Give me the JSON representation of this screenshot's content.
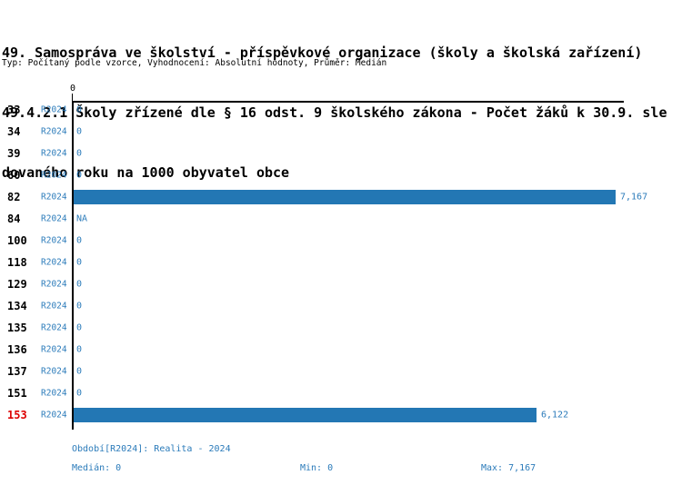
{
  "page": {
    "title_lines": [
      "49. Samospráva ve školství - příspěvkové organizace (školy a školská zařízení)",
      "49.4.2.1 Školy zřízené dle § 16 odst. 9 školského zákona - Počet žáků k 30.9. sle",
      "dovaného roku na 1000 obyvatel obce"
    ],
    "subtitle": "Typ: Počítaný podle vzorce, Vyhodnocení: Absolutní hodnoty, Průměr: Medián"
  },
  "colors": {
    "bar_blue": "#2377B4",
    "text_blue": "#2B7BBA",
    "highlight_red": "#DD0000",
    "axis_black": "#000000"
  },
  "chart_data": {
    "type": "bar",
    "orientation": "horizontal",
    "title": "49. Samospráva ve školství - příspěvkové organizace (školy a školská zařízení) 49.4.2.1 Školy zřízené dle § 16 odst. 9 školského zákona - Počet žáků k 30.9. sledovaného roku na 1000 obyvatel obce",
    "subtitle": "Typ: Počítaný podle vzorce, Vyhodnocení: Absolutní hodnoty, Průměr: Medián",
    "series_name": "R2024",
    "axis_origin_tick": "0",
    "xlim": [
      0,
      7275
    ],
    "grid": false,
    "legend_position": "none",
    "categories": [
      "33",
      "34",
      "39",
      "60",
      "82",
      "84",
      "100",
      "118",
      "129",
      "134",
      "135",
      "136",
      "137",
      "151",
      "153"
    ],
    "values": [
      0,
      0,
      0,
      0,
      7167,
      null,
      0,
      0,
      0,
      0,
      0,
      0,
      0,
      0,
      6122
    ],
    "value_labels": [
      "0",
      "0",
      "0",
      "0",
      "7,167",
      "NA",
      "0",
      "0",
      "0",
      "0",
      "0",
      "0",
      "0",
      "0",
      "6,122"
    ],
    "highlighted_categories": [
      "153"
    ]
  },
  "footer": {
    "period": "Období[R2024]: Realita - 2024",
    "median": "Medián: 0",
    "min": "Min: 0",
    "max": "Max: 7,167"
  }
}
